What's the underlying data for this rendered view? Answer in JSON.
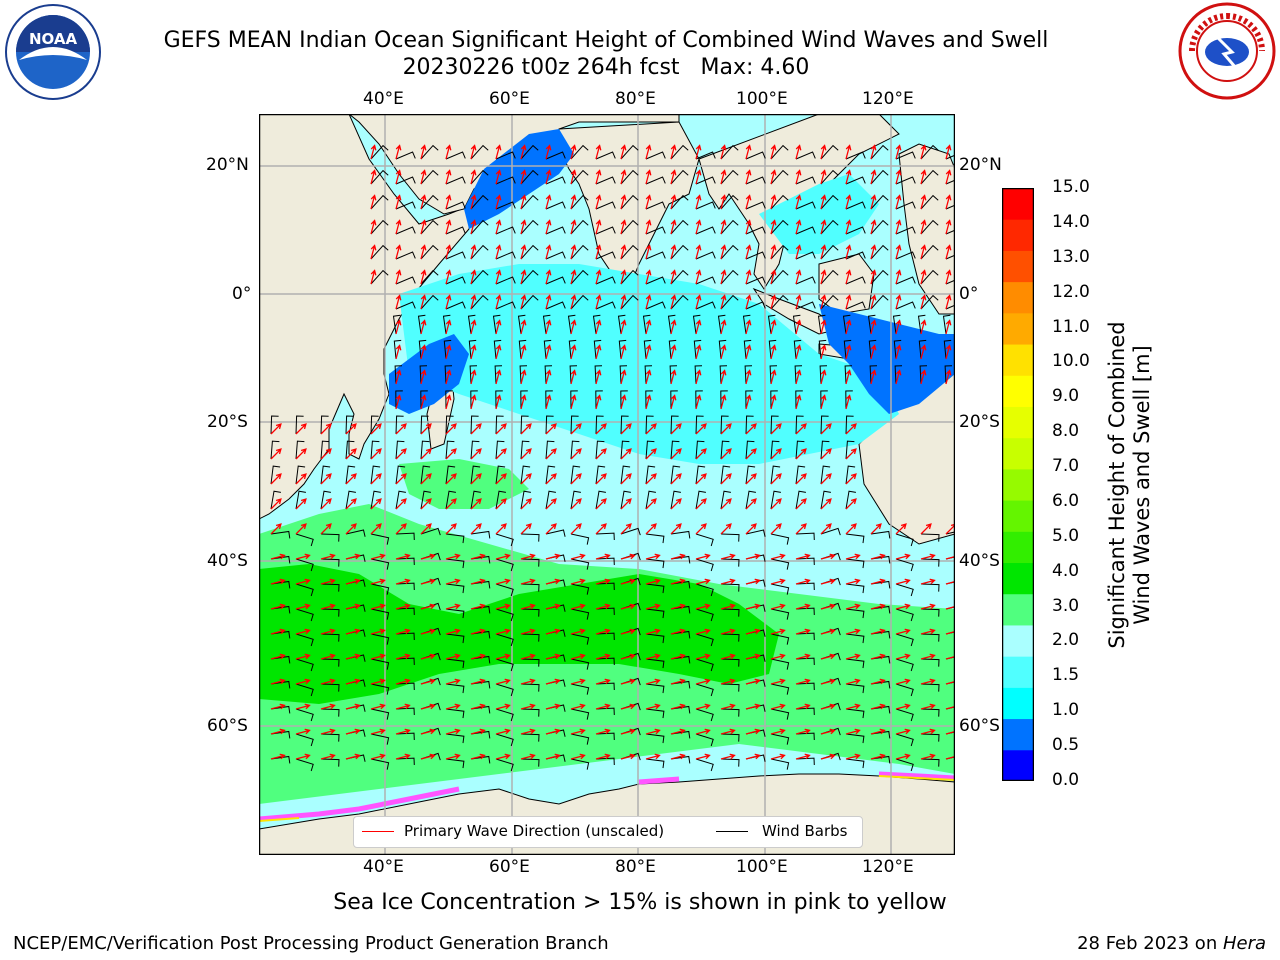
{
  "title": {
    "line1": "GEFS MEAN Indian Ocean Significant Height of Combined Wind Waves and Swell",
    "line2": "20230226 t00z 264h fcst",
    "max": "Max: 4.60"
  },
  "logos": {
    "left": {
      "icon": "noaa-logo",
      "text": "NOAA"
    },
    "right": {
      "icon": "nws-logo",
      "text": "NATIONAL WEATHER SERVICE"
    }
  },
  "map": {
    "lon_labels_top": [
      "40°E",
      "60°E",
      "80°E",
      "100°E",
      "120°E"
    ],
    "lon_labels_bottom": [
      "40°E",
      "60°E",
      "80°E",
      "100°E",
      "120°E"
    ],
    "lat_labels_left": [
      "20°N",
      "0°",
      "20°S",
      "40°S",
      "60°S"
    ],
    "lat_labels_right": [
      "20°N",
      "0°",
      "20°S",
      "40°S",
      "60°S"
    ],
    "lon_range": [
      20,
      130
    ],
    "lat_range": [
      -73,
      28
    ],
    "land_color": "#efecdc",
    "legend": {
      "wave_direction": "Primary Wave Direction (unscaled)",
      "wind_barbs": "Wind Barbs"
    }
  },
  "colorbar": {
    "label_line1": "Significant Height of Combined",
    "label_line2": "Wind Waves and Swell [m]",
    "ticks": [
      "15.0",
      "14.0",
      "13.0",
      "12.0",
      "11.0",
      "10.0",
      "9.0",
      "8.0",
      "7.0",
      "6.0",
      "5.0",
      "4.0",
      "3.0",
      "2.0",
      "1.5",
      "1.0",
      "0.5",
      "0.0"
    ],
    "colors_bottom_to_top": [
      "#0000ff",
      "#0073ff",
      "#00ffff",
      "#50ffff",
      "#aaffff",
      "#50ff7f",
      "#00e600",
      "#32ee00",
      "#64f500",
      "#96fa00",
      "#c8ff00",
      "#e6ff00",
      "#ffff00",
      "#ffe100",
      "#ffaa00",
      "#ff8c00",
      "#ff5000",
      "#ff2800",
      "#ff0000"
    ]
  },
  "footer": {
    "sea_ice_note": "Sea Ice Concentration > 15% is shown in pink to yellow",
    "branch": "NCEP/EMC/Verification Post Processing Product Generation Branch",
    "date": "28 Feb 2023 on ",
    "host": "Hera"
  }
}
